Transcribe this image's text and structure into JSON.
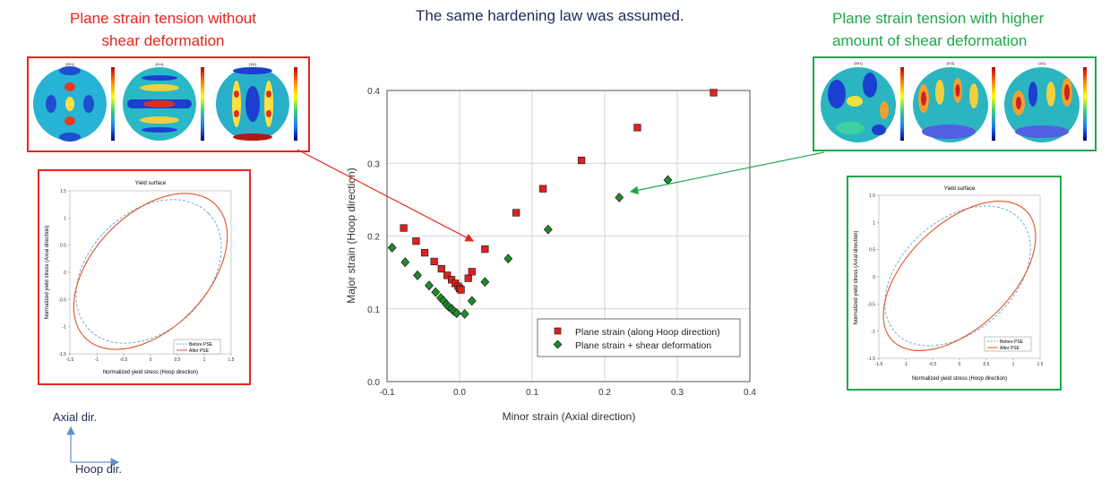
{
  "headings": {
    "left_title_line1": "Plane strain tension without",
    "left_title_line2": "shear deformation",
    "center_title": "The same hardening law was assumed.",
    "right_title_line1": "Plane strain tension with higher",
    "right_title_line2": "amount of shear deformation"
  },
  "pole_figures": {
    "left_labels": [
      "{001}",
      "{011}",
      "{111}"
    ],
    "right_labels": [
      "{001}",
      "{011}",
      "{111}"
    ]
  },
  "yield_left": {
    "title": "Yield surface",
    "xlabel": "Normalized yield stress (Hoop direction)",
    "ylabel": "Normalized yield stress (Axial direction)",
    "legend": [
      "Before PSE",
      "After PSE"
    ],
    "xticks": [
      "-1.5",
      "-1",
      "-0.5",
      "0",
      "0.5",
      "1",
      "1.5"
    ],
    "yticks": [
      "1.5",
      "1",
      "0.5",
      "0",
      "-0.5",
      "-1",
      "-1.5"
    ]
  },
  "yield_right": {
    "title": "Yield surface",
    "xlabel": "Normalized yield stress (Hoop direction)",
    "ylabel": "Normalized yield stress (Axial direction)",
    "legend": [
      "Before PSE",
      "After PSE"
    ],
    "xticks": [
      "-1.5",
      "-1",
      "-0.5",
      "0",
      "0.5",
      "1",
      "1.5"
    ],
    "yticks": [
      "1.5",
      "1",
      "0.5",
      "0",
      "-0.5",
      "-1",
      "-1.5"
    ]
  },
  "axes_indicator": {
    "axial": "Axial dir.",
    "hoop": "Hoop dir."
  },
  "colors": {
    "red": "#e8251c",
    "green": "#1ea84a",
    "series1": "#e02020",
    "series2": "#1f8a2a",
    "before": "#5aa7d8",
    "after": "#e0542a"
  },
  "chart_data": {
    "type": "scatter",
    "xlabel": "Minor strain (Axial direction)",
    "ylabel": "Major strain (Hoop direction)",
    "xlim": [
      -0.1,
      0.4
    ],
    "ylim": [
      0.0,
      0.4
    ],
    "xticks": [
      "-0.1",
      "0.0",
      "0.1",
      "0.2",
      "0.3",
      "0.4"
    ],
    "yticks": [
      "0.0",
      "0.1",
      "0.2",
      "0.3",
      "0.4"
    ],
    "grid": true,
    "legend_position": "bottom-right",
    "series": [
      {
        "name": "Plane strain (along Hoop direction)",
        "marker": "square",
        "points": [
          [
            -0.077,
            0.211
          ],
          [
            -0.06,
            0.193
          ],
          [
            -0.048,
            0.177
          ],
          [
            -0.035,
            0.165
          ],
          [
            -0.025,
            0.155
          ],
          [
            -0.017,
            0.146
          ],
          [
            -0.011,
            0.14
          ],
          [
            -0.006,
            0.135
          ],
          [
            -0.002,
            0.131
          ],
          [
            0.0,
            0.128
          ],
          [
            0.002,
            0.126
          ],
          [
            0.012,
            0.142
          ],
          [
            0.017,
            0.151
          ],
          [
            0.035,
            0.182
          ],
          [
            0.078,
            0.232
          ],
          [
            0.115,
            0.265
          ],
          [
            0.168,
            0.304
          ],
          [
            0.245,
            0.349
          ],
          [
            0.35,
            0.397
          ]
        ]
      },
      {
        "name": "Plane strain + shear deformation",
        "marker": "diamond",
        "points": [
          [
            -0.093,
            0.184
          ],
          [
            -0.075,
            0.164
          ],
          [
            -0.058,
            0.146
          ],
          [
            -0.042,
            0.132
          ],
          [
            -0.033,
            0.123
          ],
          [
            -0.026,
            0.115
          ],
          [
            -0.022,
            0.111
          ],
          [
            -0.018,
            0.106
          ],
          [
            -0.015,
            0.103
          ],
          [
            -0.011,
            0.1
          ],
          [
            -0.008,
            0.097
          ],
          [
            -0.004,
            0.094
          ],
          [
            0.007,
            0.093
          ],
          [
            0.017,
            0.111
          ],
          [
            0.035,
            0.137
          ],
          [
            0.067,
            0.169
          ],
          [
            0.122,
            0.209
          ],
          [
            0.22,
            0.253
          ],
          [
            0.287,
            0.277
          ]
        ]
      }
    ]
  }
}
